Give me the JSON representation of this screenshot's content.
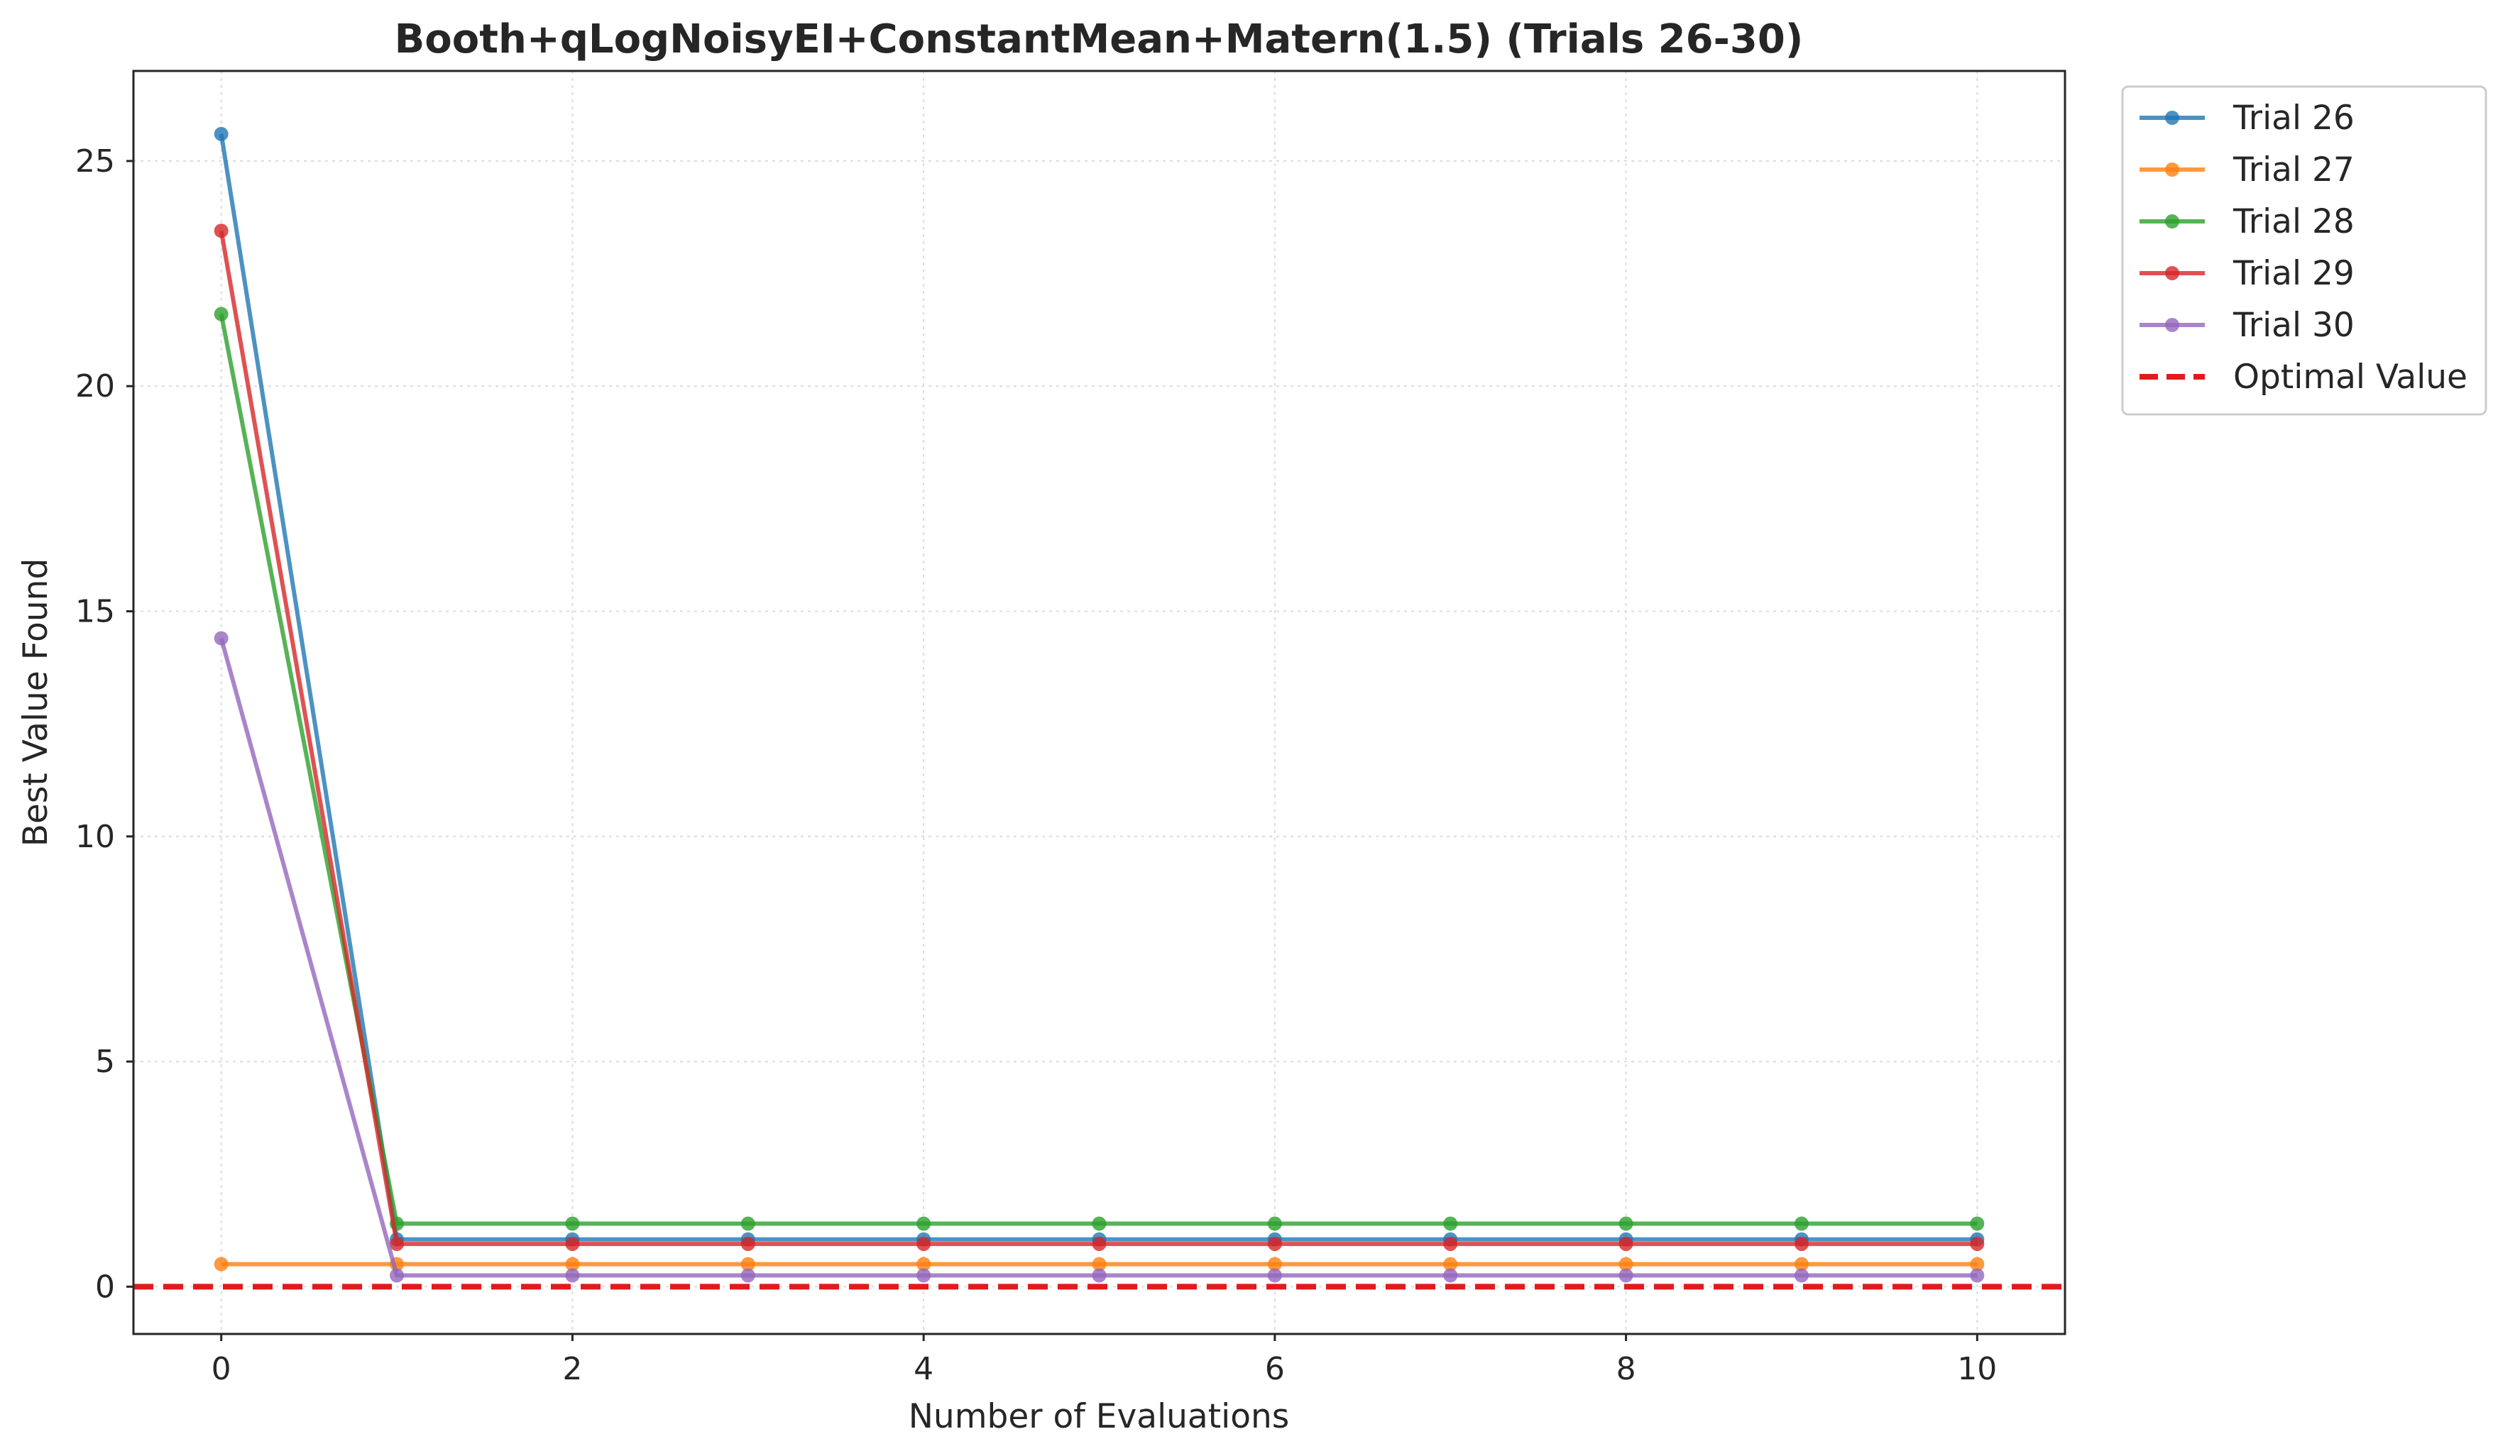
{
  "chart_data": {
    "type": "line",
    "title": "Booth+qLogNoisyEI+ConstantMean+Matern(1.5) (Trials 26-30)",
    "xlabel": "Number of Evaluations",
    "ylabel": "Best Value Found",
    "xlim": [
      -0.5,
      10.5
    ],
    "ylim": [
      -1.05,
      27.0
    ],
    "xticks": [
      0,
      2,
      4,
      6,
      8,
      10
    ],
    "yticks": [
      0,
      5,
      10,
      15,
      20,
      25
    ],
    "grid": true,
    "legend_position": "outside-top-right",
    "x": [
      0,
      1,
      2,
      3,
      4,
      5,
      6,
      7,
      8,
      9,
      10
    ],
    "series": [
      {
        "name": "Trial 26",
        "color": "#1f77b4",
        "values": [
          25.6,
          1.05,
          1.05,
          1.05,
          1.05,
          1.05,
          1.05,
          1.05,
          1.05,
          1.05,
          1.05
        ]
      },
      {
        "name": "Trial 27",
        "color": "#ff7f0e",
        "values": [
          0.5,
          0.5,
          0.5,
          0.5,
          0.5,
          0.5,
          0.5,
          0.5,
          0.5,
          0.5,
          0.5
        ]
      },
      {
        "name": "Trial 28",
        "color": "#2ca02c",
        "values": [
          21.6,
          1.4,
          1.4,
          1.4,
          1.4,
          1.4,
          1.4,
          1.4,
          1.4,
          1.4,
          1.4
        ]
      },
      {
        "name": "Trial 29",
        "color": "#d62728",
        "values": [
          23.45,
          0.95,
          0.95,
          0.95,
          0.95,
          0.95,
          0.95,
          0.95,
          0.95,
          0.95,
          0.95
        ]
      },
      {
        "name": "Trial 30",
        "color": "#9467bd",
        "values": [
          14.4,
          0.25,
          0.25,
          0.25,
          0.25,
          0.25,
          0.25,
          0.25,
          0.25,
          0.25,
          0.25
        ]
      }
    ],
    "reference_line": {
      "name": "Optimal Value",
      "y": 0,
      "color": "#e31a1c",
      "style": "dashed"
    }
  }
}
